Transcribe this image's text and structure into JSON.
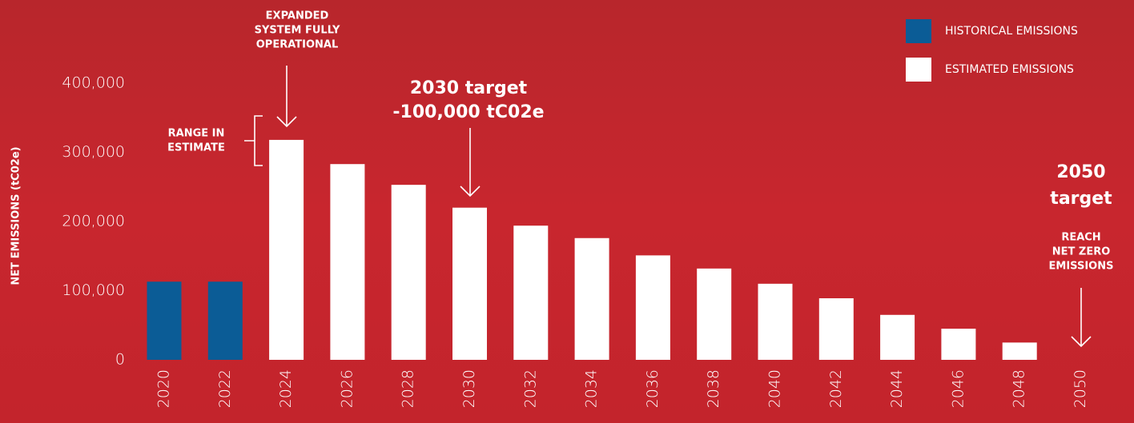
{
  "chart_data": {
    "type": "bar",
    "y_label": "NET EMISSIONS (tC02e)",
    "categories": [
      "2020",
      "2022",
      "2024",
      "2026",
      "2028",
      "2030",
      "2032",
      "2034",
      "2036",
      "2038",
      "2040",
      "2042",
      "2044",
      "2046",
      "2048",
      "2050"
    ],
    "series": [
      {
        "name": "HISTORICAL EMISSIONS",
        "color": "#0b5c96",
        "values": [
          113000,
          113000,
          null,
          null,
          null,
          null,
          null,
          null,
          null,
          null,
          null,
          null,
          null,
          null,
          null,
          null
        ]
      },
      {
        "name": "ESTIMATED EMISSIONS",
        "color": "#ffffff",
        "values": [
          null,
          null,
          318000,
          283000,
          253000,
          220000,
          194000,
          176000,
          151000,
          132000,
          110000,
          89000,
          65000,
          45000,
          25000,
          0
        ]
      }
    ],
    "ylim": [
      0,
      400000
    ],
    "yticks": [
      0,
      {
        "value": 100000,
        "label": "100,000"
      },
      {
        "value": 200000,
        "label": "200,000"
      },
      {
        "value": 300000,
        "label": "300,000"
      },
      {
        "value": 400000,
        "label": "400,000"
      }
    ],
    "grid": false,
    "annotations": [
      {
        "lines": [
          "EXPANDED",
          "SYSTEM FULLY",
          "OPERATIONAL"
        ]
      },
      {
        "lines": [
          "RANGE IN",
          "ESTIMATE"
        ]
      },
      {
        "lines": [
          "2030 target",
          "-100,000 tC02e"
        ]
      },
      {
        "lines": [
          "2050",
          "target"
        ]
      },
      {
        "lines": [
          "REACH",
          "NET ZERO",
          "EMISSIONS"
        ]
      }
    ]
  }
}
